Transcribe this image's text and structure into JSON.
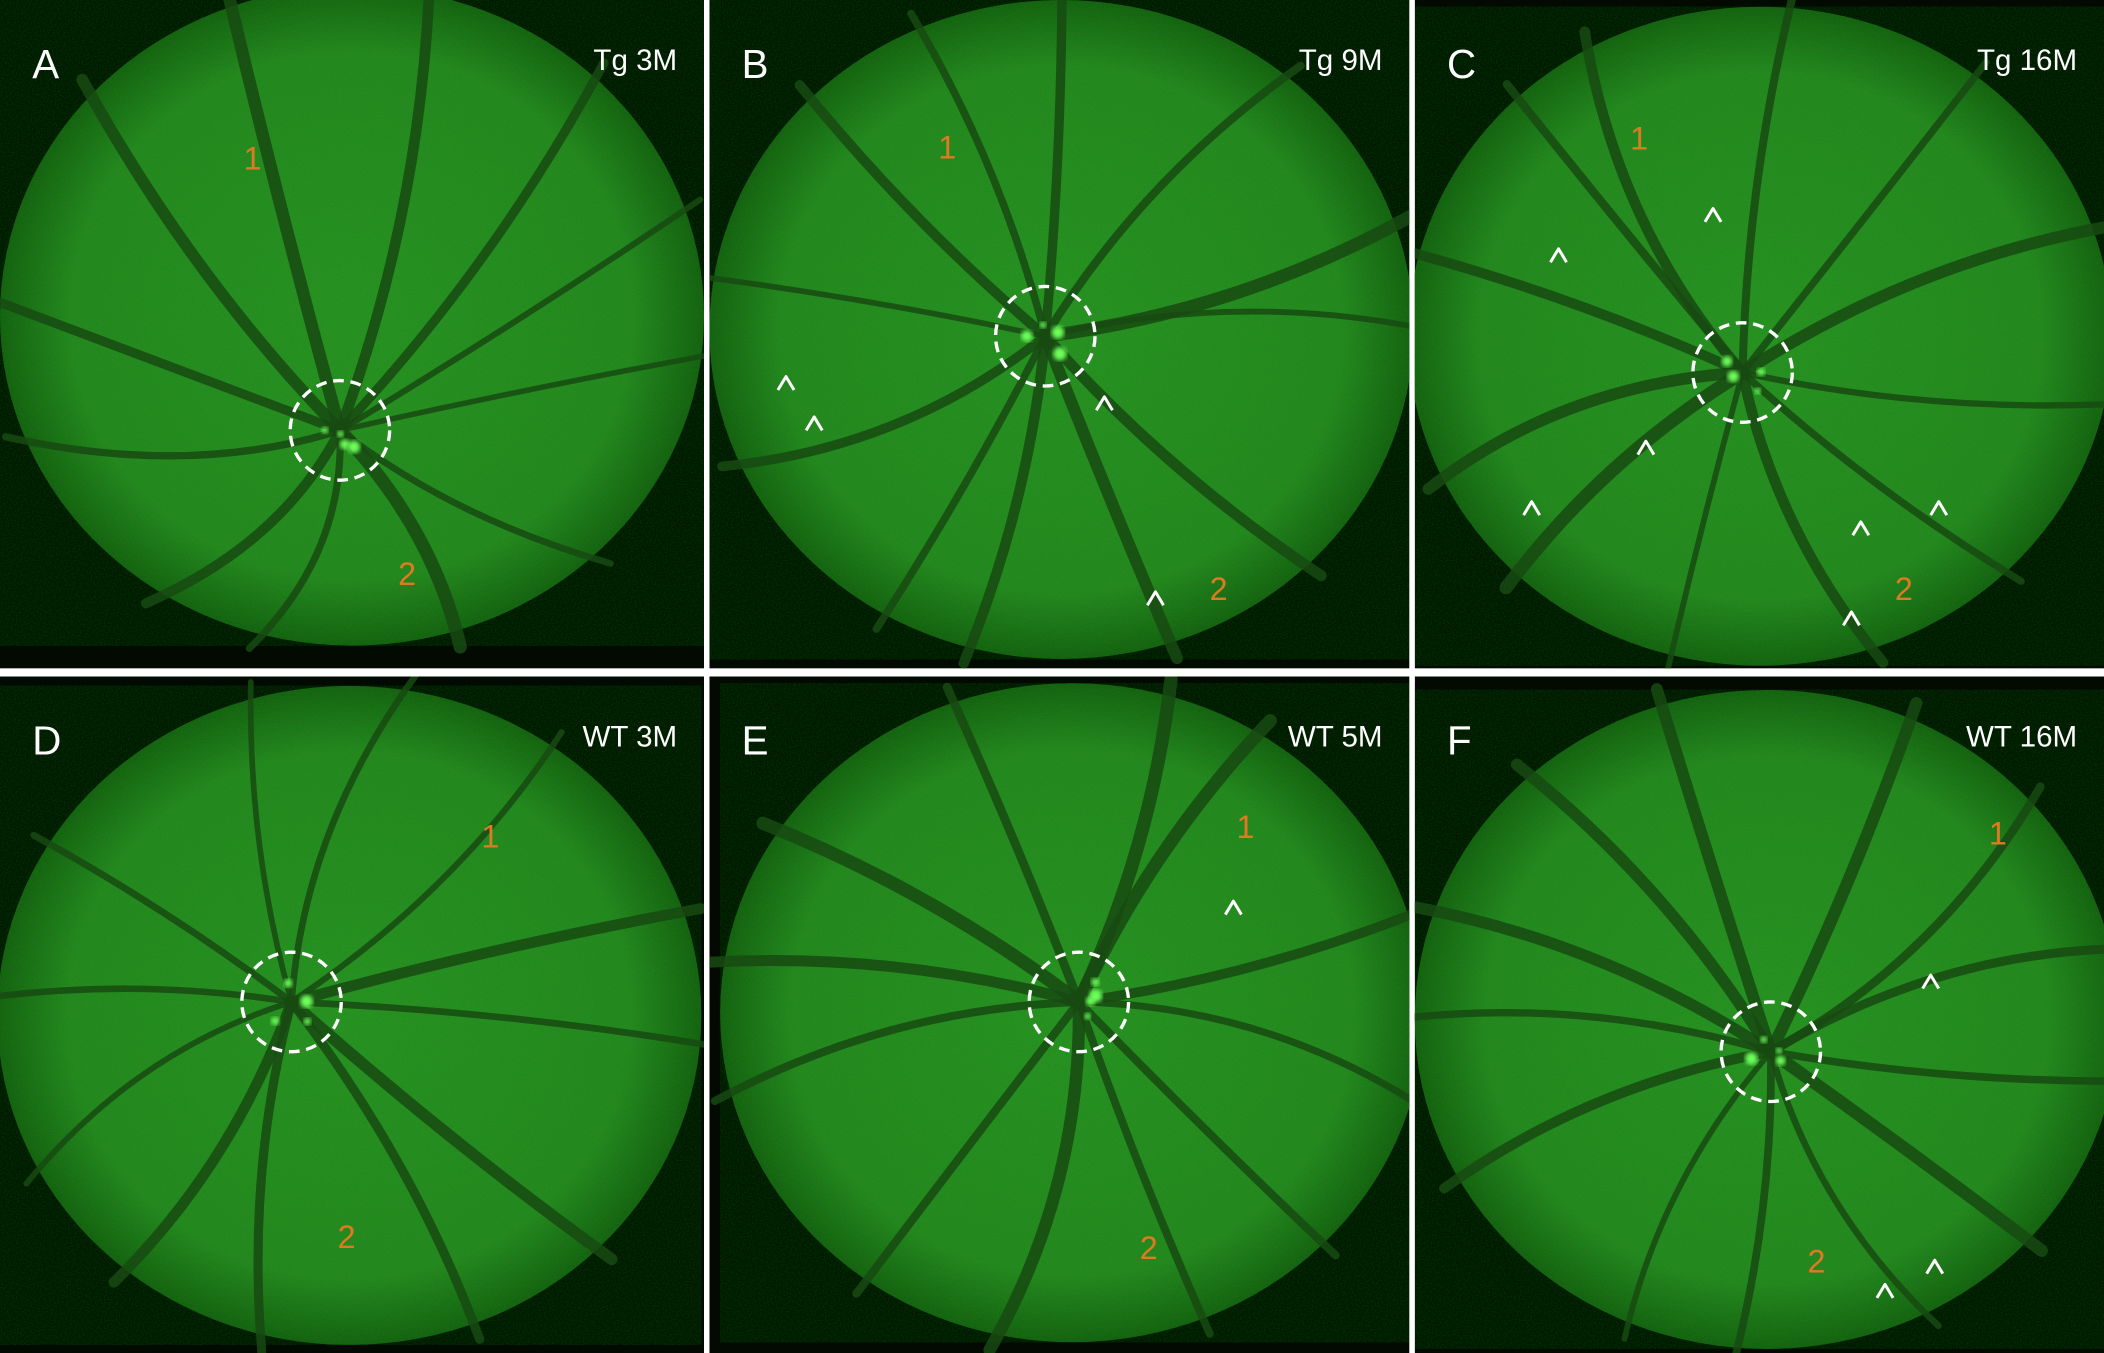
{
  "panels": [
    {
      "letter": "A",
      "label": "Tg 3M",
      "markers": [
        "1",
        "2"
      ]
    },
    {
      "letter": "B",
      "label": "Tg 9M",
      "markers": [
        "1",
        "2"
      ]
    },
    {
      "letter": "C",
      "label": "Tg 16M",
      "markers": [
        "1",
        "2"
      ]
    },
    {
      "letter": "D",
      "label": "WT 3M",
      "markers": [
        "1",
        "2"
      ]
    },
    {
      "letter": "E",
      "label": "WT 5M",
      "markers": [
        "1",
        "2"
      ]
    },
    {
      "letter": "F",
      "label": "WT 16M",
      "markers": [
        "1",
        "2"
      ]
    }
  ]
}
